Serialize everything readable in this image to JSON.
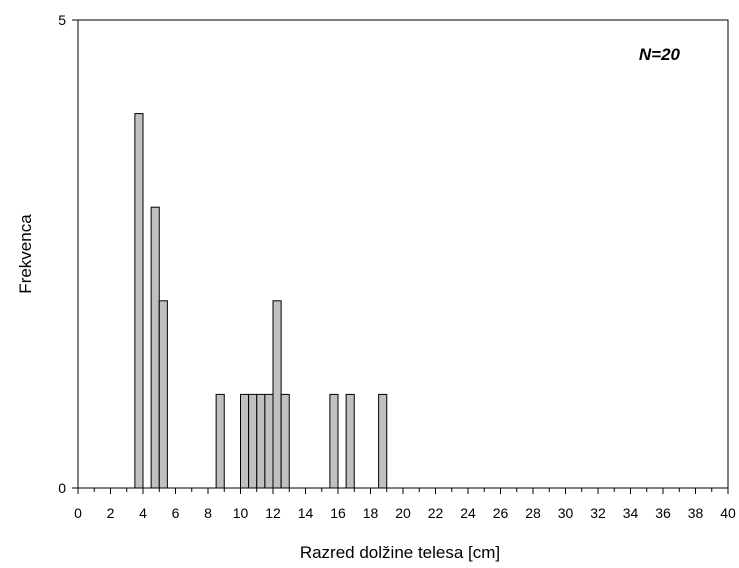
{
  "chart_data": {
    "type": "bar",
    "xlabel": "Razred dolžine telesa [cm]",
    "ylabel": "Frekvenca",
    "annotation": "N=20",
    "xlim": [
      0,
      40
    ],
    "ylim": [
      0,
      5
    ],
    "x_tick_labels": [
      "0",
      "2",
      "4",
      "6",
      "8",
      "10",
      "12",
      "14",
      "16",
      "18",
      "20",
      "22",
      "24",
      "26",
      "28",
      "30",
      "32",
      "34",
      "36",
      "38",
      "40"
    ],
    "y_tick_labels": [
      "0",
      "5"
    ],
    "bin_width": 0.5,
    "x": [
      3.5,
      4.5,
      5.0,
      8.5,
      10.0,
      10.5,
      11.0,
      11.5,
      12.0,
      12.5,
      15.5,
      16.5,
      18.5
    ],
    "values": [
      4,
      3,
      2,
      1,
      1,
      1,
      1,
      1,
      2,
      1,
      1,
      1,
      1
    ],
    "bar_color": "#c0c0c0",
    "grid": false,
    "legend": "none"
  }
}
